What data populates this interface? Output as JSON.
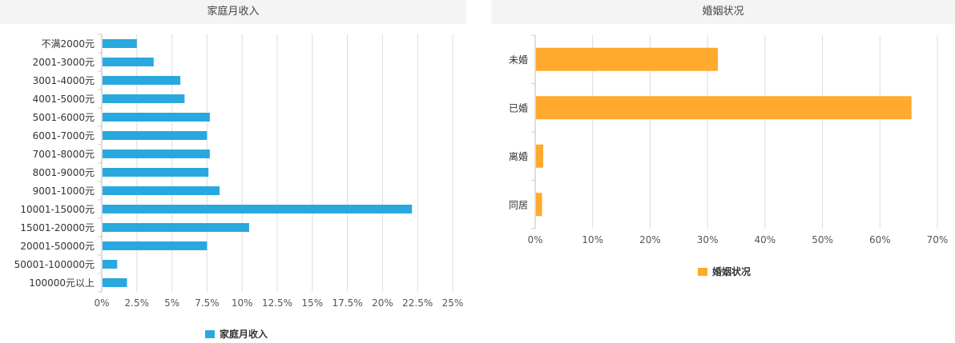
{
  "chart_data": [
    {
      "type": "bar",
      "orientation": "horizontal",
      "title": "家庭月收入",
      "categories": [
        "不满2000元",
        "2001-3000元",
        "3001-4000元",
        "4001-5000元",
        "5001-6000元",
        "6001-7000元",
        "7001-8000元",
        "8001-9000元",
        "9001-1000元",
        "10001-15000元",
        "15001-20000元",
        "20001-50000元",
        "50001-100000元",
        "100000元以上"
      ],
      "series": [
        {
          "name": "家庭月收入",
          "color": "#29a8e0",
          "values": [
            2.5,
            3.7,
            5.6,
            5.9,
            7.7,
            7.5,
            7.7,
            7.6,
            8.4,
            22.1,
            10.5,
            7.5,
            1.1,
            1.8
          ]
        }
      ],
      "xlim": [
        0,
        25
      ],
      "ticks": [
        "0%",
        "2.5%",
        "5%",
        "7.5%",
        "10%",
        "12.5%",
        "15%",
        "17.5%",
        "20%",
        "22.5%",
        "25%"
      ],
      "grid": true,
      "legend_position": "bottom-center"
    },
    {
      "type": "bar",
      "orientation": "horizontal",
      "title": "婚姻状况",
      "categories": [
        "未婚",
        "已婚",
        "离婚",
        "同居"
      ],
      "series": [
        {
          "name": "婚姻状况",
          "color": "#ffaa2e",
          "values": [
            31.8,
            65.5,
            1.4,
            1.2
          ]
        }
      ],
      "xlim": [
        0,
        70
      ],
      "ticks": [
        "0%",
        "10%",
        "20%",
        "30%",
        "40%",
        "50%",
        "60%",
        "70%"
      ],
      "grid": true,
      "legend_position": "bottom-center"
    }
  ]
}
